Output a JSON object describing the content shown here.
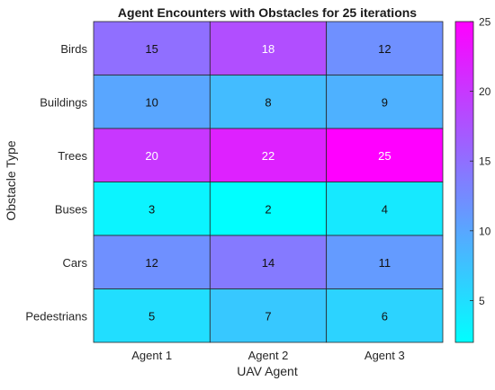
{
  "chart_data": {
    "type": "heatmap",
    "title": "Agent Encounters with Obstacles for 25 iterations",
    "xlabel": "UAV Agent",
    "ylabel": "Obstacle Type",
    "x_categories": [
      "Agent 1",
      "Agent 2",
      "Agent 3"
    ],
    "y_categories": [
      "Birds",
      "Buildings",
      "Trees",
      "Buses",
      "Cars",
      "Pedestrians"
    ],
    "values": [
      [
        15,
        18,
        12
      ],
      [
        10,
        8,
        9
      ],
      [
        20,
        22,
        25
      ],
      [
        3,
        2,
        4
      ],
      [
        12,
        14,
        11
      ],
      [
        5,
        7,
        6
      ]
    ],
    "colormap": "cool",
    "color_low": "#00ffff",
    "color_high": "#ff00ff",
    "colorbar_range": [
      2,
      25
    ],
    "colorbar_ticks": [
      5,
      10,
      15,
      20,
      25
    ],
    "grid": true,
    "colorbar_position": "right"
  }
}
